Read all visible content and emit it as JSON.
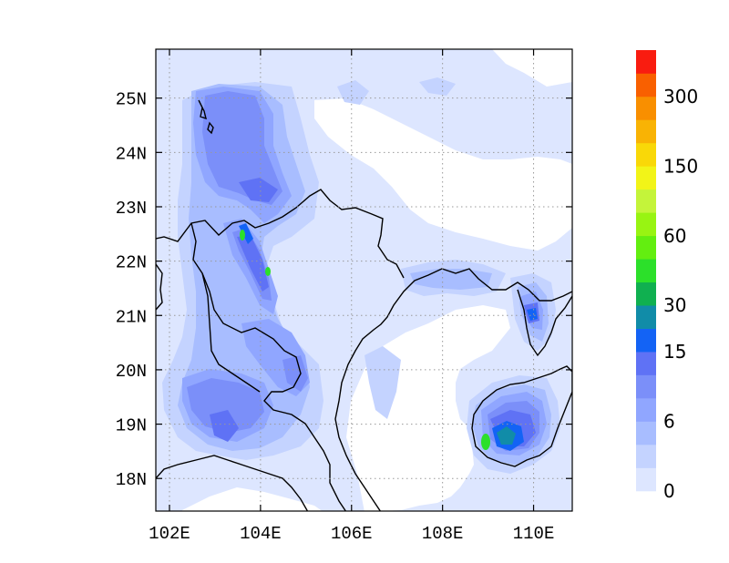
{
  "map": {
    "type": "filled-contour-map",
    "lon_range": [
      101.7,
      110.85
    ],
    "lat_range": [
      17.4,
      25.9
    ],
    "grid_lines": true,
    "lon_ticks": [
      {
        "value": 102,
        "label": "102E"
      },
      {
        "value": 104,
        "label": "104E"
      },
      {
        "value": 106,
        "label": "106E"
      },
      {
        "value": 108,
        "label": "108E"
      },
      {
        "value": 110,
        "label": "110E"
      }
    ],
    "lat_ticks": [
      {
        "value": 18,
        "label": "18N"
      },
      {
        "value": 19,
        "label": "19N"
      },
      {
        "value": 20,
        "label": "20N"
      },
      {
        "value": 21,
        "label": "21N"
      },
      {
        "value": 22,
        "label": "22N"
      },
      {
        "value": 23,
        "label": "23N"
      },
      {
        "value": 24,
        "label": "24N"
      },
      {
        "value": 25,
        "label": "25N"
      }
    ]
  },
  "colorbar": {
    "colors": [
      "#dde6ff",
      "#c4d3ff",
      "#a8bdff",
      "#90a6ff",
      "#7b8ff9",
      "#5f72f5",
      "#1363f5",
      "#118ca8",
      "#10b050",
      "#2ce02a",
      "#63ee10",
      "#98f412",
      "#c4f43a",
      "#f2f418",
      "#f9d808",
      "#f9b304",
      "#f98f00",
      "#f96000",
      "#f91c10"
    ],
    "labels": [
      {
        "index": 0,
        "text": "0"
      },
      {
        "index": 3,
        "text": "6"
      },
      {
        "index": 6,
        "text": "15"
      },
      {
        "index": 8,
        "text": "30"
      },
      {
        "index": 11,
        "text": "60"
      },
      {
        "index": 14,
        "text": "150"
      },
      {
        "index": 17,
        "text": "300"
      }
    ]
  },
  "palette": {
    "lowest": "#dde6ff",
    "low": "#c4d3ff",
    "mid": "#a8bdff",
    "moderate": "#90a6ff",
    "heavy": "#7b8ff9",
    "heavier": "#5f72f5",
    "strong": "#1363f5",
    "teal": "#118ca8",
    "green": "#10b050",
    "bright_green": "#2ce02a"
  }
}
